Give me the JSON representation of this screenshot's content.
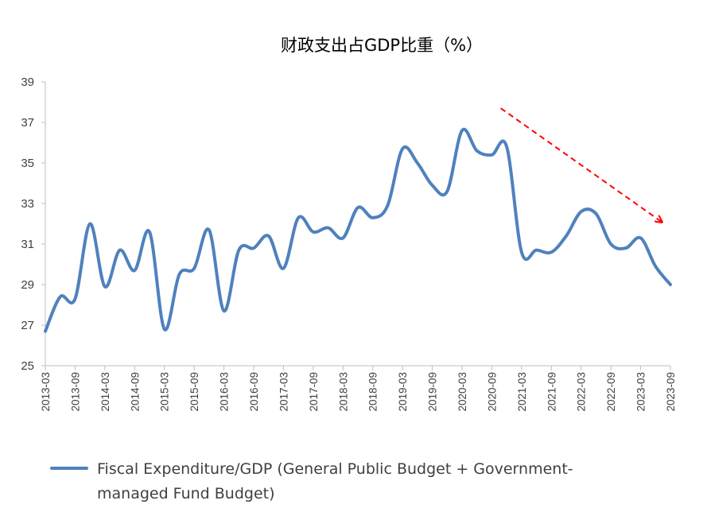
{
  "chart_data": {
    "type": "line",
    "title": "财政支出占GDP比重（%）",
    "xlabel": "",
    "ylabel": "",
    "ylim": [
      25,
      39
    ],
    "yticks": [
      25,
      27,
      29,
      31,
      33,
      35,
      37,
      39
    ],
    "x_tick_labels": [
      "2013-03",
      "2013-09",
      "2014-03",
      "2014-09",
      "2015-03",
      "2015-09",
      "2016-03",
      "2016-09",
      "2017-03",
      "2017-09",
      "2018-03",
      "2018-09",
      "2019-03",
      "2019-09",
      "2020-03",
      "2020-09",
      "2021-03",
      "2021-09",
      "2022-03",
      "2022-09",
      "2023-03",
      "2023-09"
    ],
    "grid": false,
    "legend_position": "bottom",
    "line_color": "#4F81BD",
    "trend_arrow_color": "#FF0000",
    "series": [
      {
        "name": "Fiscal Expenditure/GDP (General Public Budget + Government-managed Fund Budget)",
        "legend_lines": [
          "Fiscal Expenditure/GDP (General Public Budget + Government-",
          "managed Fund Budget)"
        ],
        "x": [
          0,
          0.5,
          1,
          1.5,
          2,
          2.5,
          3,
          3.5,
          4,
          4.5,
          5,
          5.5,
          6,
          6.5,
          7,
          7.5,
          8,
          8.5,
          9,
          9.5,
          10,
          10.5,
          11,
          11.5,
          12,
          12.5,
          13,
          13.5,
          14,
          14.5,
          15,
          15.5,
          16,
          16.5,
          17,
          17.5,
          18,
          18.5,
          19,
          19.5,
          20,
          20.5,
          21
        ],
        "values": [
          26.7,
          28.4,
          28.3,
          32.0,
          28.9,
          30.7,
          29.7,
          31.6,
          26.8,
          29.5,
          29.8,
          31.7,
          27.7,
          30.7,
          30.8,
          31.4,
          29.8,
          32.3,
          31.6,
          31.8,
          31.3,
          32.8,
          32.3,
          32.9,
          35.7,
          35.0,
          33.9,
          33.6,
          36.6,
          35.6,
          35.4,
          35.8,
          30.6,
          30.7,
          30.6,
          31.4,
          32.6,
          32.5,
          31.0,
          30.8,
          31.3,
          29.9,
          29.0
        ]
      }
    ],
    "annotations": [
      {
        "type": "arrow",
        "style": "dashed",
        "from": [
          15.3,
          37.7
        ],
        "to": [
          20.7,
          32.1
        ],
        "description": "declining trend"
      }
    ]
  }
}
